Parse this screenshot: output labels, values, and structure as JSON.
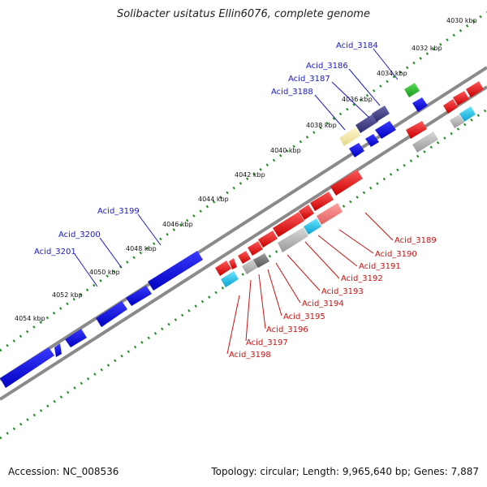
{
  "title": "Solibacter usitatus Ellin6076, complete genome",
  "footer": {
    "accession": "Accession: NC_008536",
    "topology": "Topology: circular; Length: 9,965,640 bp; Genes: 7,887"
  },
  "colors": {
    "backbone": "#8a8a8a",
    "tick": "#1e8c1e",
    "forward_gene": "#1414e6",
    "reverse_gene": "#e61414",
    "label_top": "#1a1acc",
    "label_bottom": "#cc1111"
  },
  "kbp_labels": [
    "4030 kbp",
    "4032 kbp",
    "4034 kbp",
    "4036 kbp",
    "4038 kbp",
    "4040 kbp",
    "4042 kbp",
    "4044 kbp",
    "4046 kbp",
    "4048 kbp",
    "4050 kbp",
    "4052 kbp",
    "4054 kbp"
  ],
  "top_gene_labels": [
    "Acid_3184",
    "Acid_3186",
    "Acid_3187",
    "Acid_3188",
    "Acid_3199",
    "Acid_3200",
    "Acid_3201"
  ],
  "bottom_gene_labels": [
    "Acid_3189",
    "Acid_3190",
    "Acid_3191",
    "Acid_3192",
    "Acid_3193",
    "Acid_3194",
    "Acid_3195",
    "Acid_3196",
    "Acid_3197",
    "Acid_3198"
  ]
}
